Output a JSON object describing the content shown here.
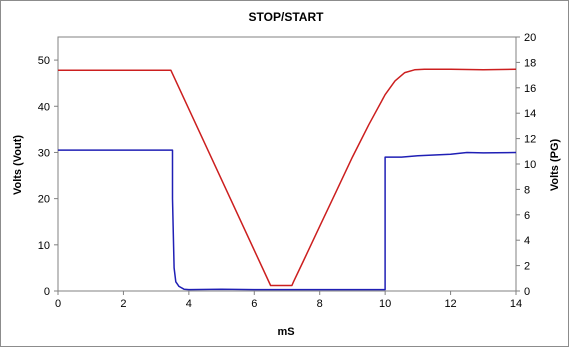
{
  "chart_data": {
    "type": "line",
    "title": "STOP/START",
    "xlabel": "mS",
    "ylabel_left": "Volts (Vout)",
    "ylabel_right": "Volts (PG)",
    "xlim": [
      0,
      14
    ],
    "ylim_left": [
      0,
      55
    ],
    "ylim_right": [
      0,
      20
    ],
    "x_ticks": [
      0,
      2,
      4,
      6,
      8,
      10,
      12,
      14
    ],
    "y_ticks_left": [
      0,
      10,
      20,
      30,
      40,
      50
    ],
    "y_ticks_right": [
      0,
      2,
      4,
      6,
      8,
      10,
      12,
      14,
      16,
      18,
      20
    ],
    "grid": false,
    "legend": false,
    "series": [
      {
        "color": "#cc1f1f",
        "axis": "left",
        "x": [
          0,
          3.45,
          6.5,
          6.5,
          7.15,
          7.2,
          7.5,
          8.0,
          8.5,
          9.0,
          9.5,
          10.0,
          10.3,
          10.6,
          10.9,
          11.2,
          12.0,
          13.0,
          14.0
        ],
        "y": [
          47.8,
          47.8,
          1.2,
          1.2,
          1.2,
          2.0,
          6.5,
          14.0,
          21.5,
          29.0,
          36.0,
          42.5,
          45.5,
          47.3,
          47.9,
          48.0,
          48.0,
          47.9,
          48.0
        ]
      },
      {
        "color": "#1f1fb5",
        "axis": "left",
        "x": [
          0,
          3.5,
          3.5,
          3.55,
          3.6,
          3.7,
          3.85,
          4.0,
          5.0,
          6.0,
          7.0,
          8.0,
          9.0,
          10.0,
          10.0,
          10.5,
          11.0,
          12.0,
          12.5,
          13.0,
          14.0
        ],
        "y": [
          30.5,
          30.5,
          20.0,
          5.0,
          2.0,
          1.0,
          0.4,
          0.3,
          0.4,
          0.3,
          0.3,
          0.3,
          0.3,
          0.3,
          29.0,
          29.0,
          29.3,
          29.6,
          30.0,
          29.9,
          30.0
        ]
      }
    ]
  }
}
